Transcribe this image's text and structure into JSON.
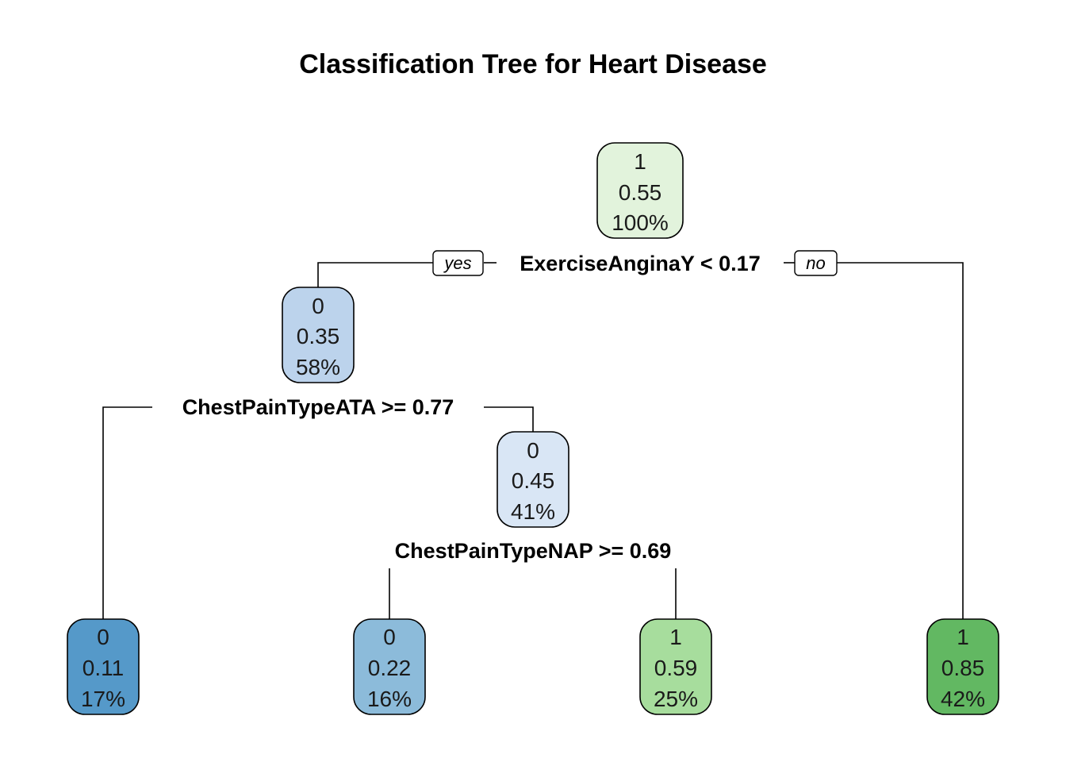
{
  "title": "Classification Tree for Heart Disease",
  "nodes": [
    {
      "id": "root",
      "cls": "1",
      "prob": "0.55",
      "pct": "100%",
      "color": "#e2f3dc"
    },
    {
      "id": "n2",
      "cls": "0",
      "prob": "0.35",
      "pct": "58%",
      "color": "#bcd3ec"
    },
    {
      "id": "n5",
      "cls": "0",
      "prob": "0.45",
      "pct": "41%",
      "color": "#d9e6f5"
    },
    {
      "id": "leaf4",
      "cls": "0",
      "prob": "0.11",
      "pct": "17%",
      "color": "#5599c9"
    },
    {
      "id": "leaf10",
      "cls": "0",
      "prob": "0.22",
      "pct": "16%",
      "color": "#8cbbda"
    },
    {
      "id": "leaf11",
      "cls": "1",
      "prob": "0.59",
      "pct": "25%",
      "color": "#a7dd9d"
    },
    {
      "id": "leaf3",
      "cls": "1",
      "prob": "0.85",
      "pct": "42%",
      "color": "#62b862"
    }
  ],
  "splits": {
    "root": "ExerciseAnginaY < 0.17",
    "n2": "ChestPainTypeATA >= 0.77",
    "n5": "ChestPainTypeNAP >= 0.69"
  },
  "yes_label": "yes",
  "no_label": "no"
}
